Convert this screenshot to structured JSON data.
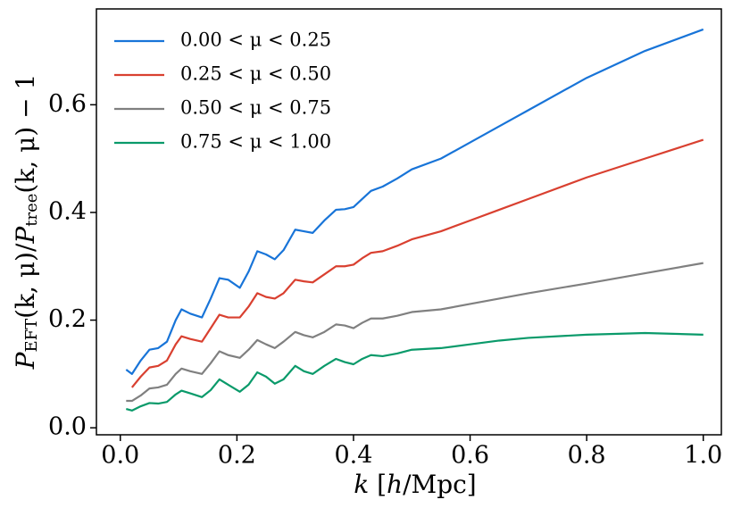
{
  "chart_data": {
    "type": "line",
    "xlabel": [
      "k",
      " [",
      "h",
      "/Mpc]"
    ],
    "ylabel": [
      "P",
      "EFT",
      "(k, μ)/",
      "P",
      "tree",
      "(k, μ) − 1"
    ],
    "x": [
      0.01,
      0.02,
      0.035,
      0.05,
      0.065,
      0.08,
      0.095,
      0.105,
      0.12,
      0.14,
      0.155,
      0.17,
      0.185,
      0.205,
      0.22,
      0.235,
      0.25,
      0.265,
      0.28,
      0.3,
      0.315,
      0.33,
      0.35,
      0.37,
      0.385,
      0.4,
      0.415,
      0.43,
      0.45,
      0.475,
      0.5,
      0.55,
      0.6,
      0.65,
      0.7,
      0.8,
      0.9,
      1.0
    ],
    "series": [
      {
        "name": "0.00 < μ < 0.25",
        "color": "#1874d8",
        "values": [
          0.108,
          0.1,
          0.125,
          0.145,
          0.148,
          0.16,
          0.2,
          0.22,
          0.212,
          0.205,
          0.24,
          0.278,
          0.275,
          0.26,
          0.29,
          0.328,
          0.322,
          0.313,
          0.33,
          0.368,
          0.365,
          0.362,
          0.385,
          0.405,
          0.406,
          0.41,
          0.425,
          0.44,
          0.448,
          0.463,
          0.48,
          0.5,
          0.53,
          0.56,
          0.59,
          0.65,
          0.7,
          0.74
        ]
      },
      {
        "name": "0.25 < μ < 0.50",
        "color": "#d94030",
        "values": [
          null,
          0.075,
          0.095,
          0.112,
          0.115,
          0.125,
          0.155,
          0.17,
          0.165,
          0.16,
          0.185,
          0.21,
          0.205,
          0.205,
          0.225,
          0.25,
          0.243,
          0.24,
          0.25,
          0.275,
          0.272,
          0.27,
          0.285,
          0.3,
          0.3,
          0.303,
          0.315,
          0.325,
          0.328,
          0.338,
          0.35,
          0.365,
          0.385,
          0.405,
          0.425,
          0.465,
          0.5,
          0.535
        ]
      },
      {
        "name": "0.50 < μ < 0.75",
        "color": "#808080",
        "values": [
          0.05,
          0.05,
          0.06,
          0.073,
          0.075,
          0.08,
          0.1,
          0.11,
          0.105,
          0.1,
          0.12,
          0.142,
          0.135,
          0.13,
          0.145,
          0.163,
          0.155,
          0.148,
          0.16,
          0.178,
          0.172,
          0.168,
          0.178,
          0.192,
          0.19,
          0.185,
          0.195,
          0.203,
          0.203,
          0.208,
          0.215,
          0.22,
          0.23,
          0.24,
          0.25,
          0.268,
          0.287,
          0.306
        ]
      },
      {
        "name": "0.75 < μ < 1.00",
        "color": "#0a9a6a",
        "values": [
          0.035,
          0.032,
          0.04,
          0.046,
          0.045,
          0.048,
          0.062,
          0.069,
          0.064,
          0.057,
          0.07,
          0.09,
          0.08,
          0.067,
          0.08,
          0.103,
          0.095,
          0.082,
          0.09,
          0.115,
          0.105,
          0.1,
          0.115,
          0.128,
          0.122,
          0.118,
          0.128,
          0.135,
          0.133,
          0.138,
          0.145,
          0.148,
          0.155,
          0.162,
          0.167,
          0.173,
          0.176,
          0.173
        ]
      }
    ],
    "xlim": [
      -0.041,
      1.031
    ],
    "ylim": [
      -0.013,
      0.778
    ],
    "xticks": [
      {
        "value": 0,
        "label": "0.0"
      },
      0.2,
      0.4,
      0.6,
      0.8,
      {
        "value": 1,
        "label": "1.0"
      }
    ],
    "yticks": [
      {
        "value": 0,
        "label": "0.0"
      },
      0.2,
      0.4,
      0.6
    ],
    "legend": "upper left"
  }
}
